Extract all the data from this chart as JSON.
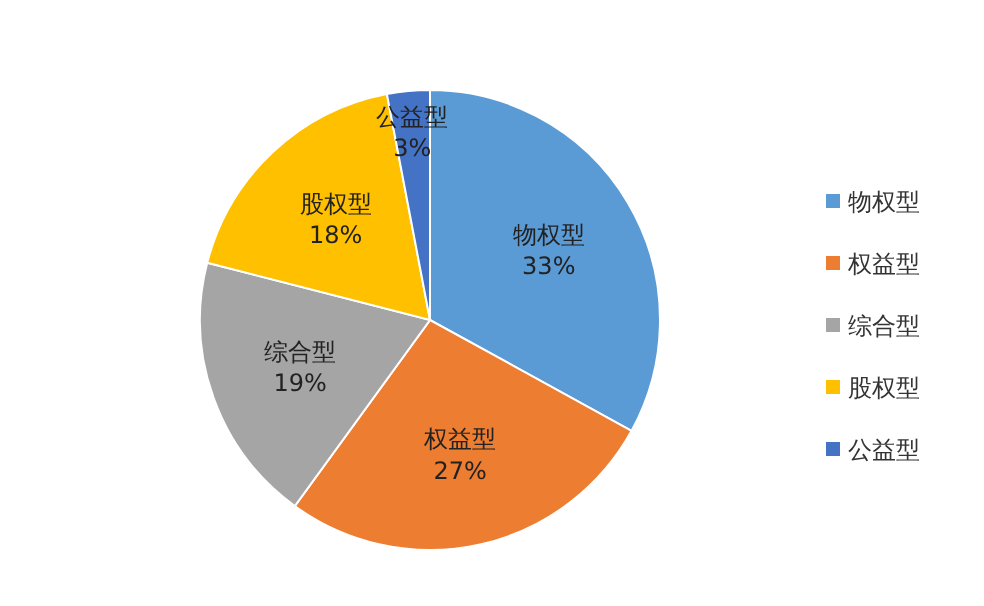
{
  "chart_data": {
    "type": "pie",
    "categories": [
      "物权型",
      "权益型",
      "综合型",
      "股权型",
      "公益型"
    ],
    "values": [
      33,
      27,
      19,
      18,
      3
    ],
    "value_labels": [
      "33%",
      "27%",
      "19%",
      "18%",
      "3%"
    ],
    "colors": [
      "#5b9bd5",
      "#ed7d31",
      "#a5a5a5",
      "#ffc000",
      "#4472c4"
    ],
    "legend": "right"
  }
}
